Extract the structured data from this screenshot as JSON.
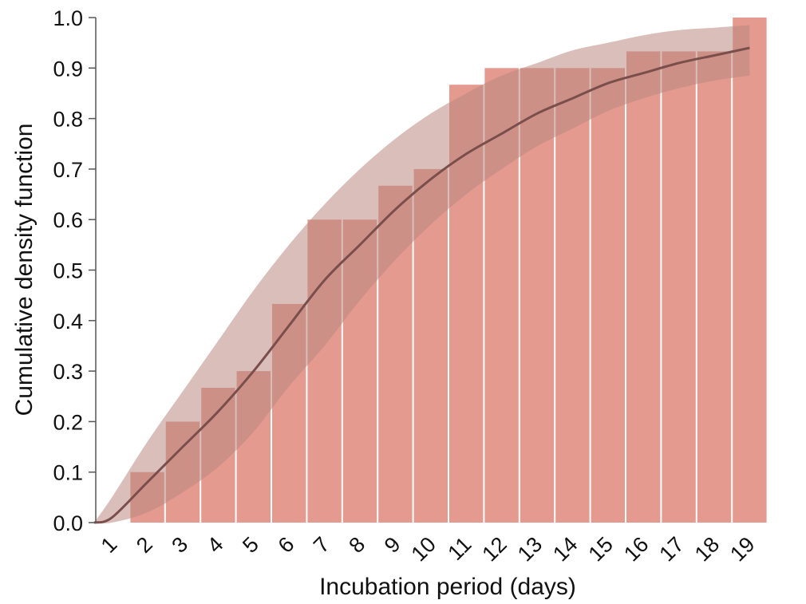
{
  "chart_data": {
    "type": "bar",
    "title": "",
    "xlabel": "Incubation period (days)",
    "ylabel": "Cumulative density function",
    "categories": [
      "1",
      "2",
      "3",
      "4",
      "5",
      "6",
      "7",
      "8",
      "9",
      "10",
      "11",
      "12",
      "13",
      "14",
      "15",
      "16",
      "17",
      "18",
      "19"
    ],
    "values": [
      0.0,
      0.1,
      0.2,
      0.267,
      0.3,
      0.433,
      0.6,
      0.6,
      0.667,
      0.7,
      0.867,
      0.9,
      0.9,
      0.9,
      0.9,
      0.933,
      0.933,
      0.933,
      1.0
    ],
    "ylim": [
      0,
      1.0
    ],
    "yticks": [
      "0.0",
      "0.1",
      "0.2",
      "0.3",
      "0.4",
      "0.5",
      "0.6",
      "0.7",
      "0.8",
      "0.9",
      "1.0"
    ],
    "fitted_curve": {
      "x": [
        0.5,
        1,
        2,
        3,
        4,
        5,
        6,
        7,
        8,
        9,
        10,
        11,
        12,
        13,
        14,
        15,
        16,
        17,
        18,
        19
      ],
      "y": [
        0.0,
        0.01,
        0.08,
        0.15,
        0.22,
        0.3,
        0.39,
        0.48,
        0.55,
        0.62,
        0.68,
        0.73,
        0.77,
        0.81,
        0.84,
        0.87,
        0.89,
        0.91,
        0.925,
        0.94
      ],
      "lower": [
        0.0,
        0.0,
        0.02,
        0.06,
        0.11,
        0.18,
        0.27,
        0.35,
        0.44,
        0.52,
        0.59,
        0.65,
        0.7,
        0.745,
        0.78,
        0.815,
        0.84,
        0.86,
        0.875,
        0.885
      ],
      "upper": [
        0.0,
        0.05,
        0.16,
        0.26,
        0.36,
        0.46,
        0.55,
        0.63,
        0.7,
        0.76,
        0.81,
        0.85,
        0.885,
        0.91,
        0.935,
        0.95,
        0.965,
        0.975,
        0.98,
        0.985
      ]
    },
    "colors": {
      "bar": "#e59a8f",
      "band": "#b98982",
      "band_opacity": 0.55,
      "line": "#7a4f4b",
      "axis": "#555555"
    },
    "grid": false,
    "legend": "none"
  }
}
